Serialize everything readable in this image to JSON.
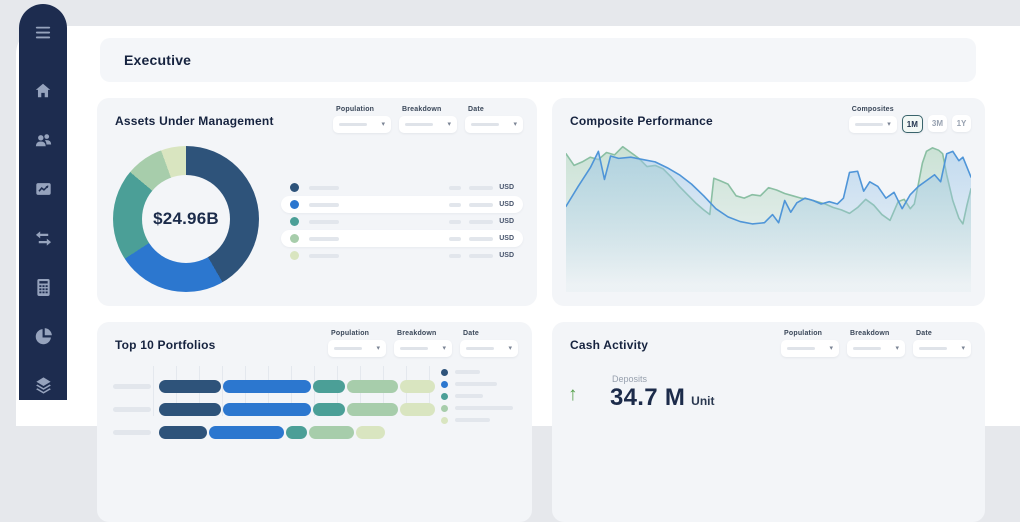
{
  "app": {
    "page_title": "Executive"
  },
  "sidebar": {
    "icons": [
      "menu-icon",
      "home-icon",
      "users-icon",
      "performance-chart-icon",
      "transfer-arrows-icon",
      "calculator-icon",
      "pie-chart-icon",
      "layers-icon"
    ]
  },
  "colors": {
    "sidebar_bg": "#1d2c4f",
    "sidebar_icon": "#96a3bd",
    "card_bg": "#f3f5f8",
    "title_text": "#16233f",
    "accent_navy": "#2e537a",
    "accent_blue": "#2c77cf",
    "accent_teal": "#4b9f97",
    "accent_sage": "#a7cdab",
    "accent_pale_green": "#d9e5c0",
    "kpi_up_green": "#55a04a"
  },
  "cards": {
    "aum": {
      "title": "Assets Under Management",
      "filters": [
        {
          "label": "Population"
        },
        {
          "label": "Breakdown"
        },
        {
          "label": "Date"
        }
      ],
      "chart_data": {
        "type": "donut",
        "center_label": "$24.96B",
        "segments": [
          {
            "color": "#2e537a",
            "angle_deg": 150
          },
          {
            "color": "#2c77cf",
            "angle_deg": 87
          },
          {
            "color": "#4b9f97",
            "angle_deg": 73
          },
          {
            "color": "#a7cdab",
            "angle_deg": 30
          },
          {
            "color": "#d9e5c0",
            "angle_deg": 20
          }
        ],
        "legend_rows": 5,
        "legend_value_suffix": "USD",
        "legend_labels_are_placeholders": true
      }
    },
    "composite": {
      "title": "Composite Performance",
      "filter_label": "Composites",
      "range_buttons": [
        "1M",
        "3M",
        "1Y"
      ],
      "selected_range": "1M",
      "chart_data": {
        "type": "area",
        "grid": false,
        "x_range": [
          0,
          100
        ],
        "y_range": [
          0,
          100
        ],
        "series": [
          {
            "name": "series-green",
            "line_color": "#8abfa3",
            "fill_color": "#a9d2b8",
            "points": [
              [
                0,
                90
              ],
              [
                2,
                80
              ],
              [
                4,
                83
              ],
              [
                6,
                87
              ],
              [
                8,
                85
              ],
              [
                10,
                91
              ],
              [
                12,
                89
              ],
              [
                14,
                96
              ],
              [
                16,
                91
              ],
              [
                18,
                86
              ],
              [
                20,
                79
              ],
              [
                22,
                80
              ],
              [
                24,
                77
              ],
              [
                26,
                70
              ],
              [
                28,
                62
              ],
              [
                30,
                55
              ],
              [
                32,
                48
              ],
              [
                34,
                42
              ],
              [
                35.5,
                38
              ],
              [
                36.5,
                69
              ],
              [
                38,
                67
              ],
              [
                40,
                64
              ],
              [
                42,
                54
              ],
              [
                44,
                52
              ],
              [
                46,
                55
              ],
              [
                48,
                54
              ],
              [
                50,
                61
              ],
              [
                52,
                59
              ],
              [
                54,
                56
              ],
              [
                56,
                54
              ],
              [
                58,
                52
              ],
              [
                60,
                51
              ],
              [
                62,
                49
              ],
              [
                64,
                47
              ],
              [
                66,
                44
              ],
              [
                68,
                42
              ],
              [
                70,
                39
              ],
              [
                72,
                44
              ],
              [
                74,
                51
              ],
              [
                76,
                46
              ],
              [
                78,
                38
              ],
              [
                80,
                33
              ],
              [
                82,
                49
              ],
              [
                83.5,
                51
              ],
              [
                85,
                43
              ],
              [
                86,
                47
              ],
              [
                87,
                64
              ],
              [
                88,
                82
              ],
              [
                89,
                92
              ],
              [
                90.5,
                95
              ],
              [
                92,
                93
              ],
              [
                93,
                90
              ],
              [
                94,
                72
              ],
              [
                95.5,
                50
              ],
              [
                97,
                35
              ],
              [
                98,
                30
              ],
              [
                99,
                46
              ],
              [
                100,
                60
              ]
            ]
          },
          {
            "name": "series-blue",
            "line_color": "#4f95d8",
            "fill_color": "#9cc6e8",
            "points": [
              [
                0,
                45
              ],
              [
                3,
                62
              ],
              [
                6,
                78
              ],
              [
                8,
                92
              ],
              [
                9.5,
                68
              ],
              [
                11,
                88
              ],
              [
                13,
                86
              ],
              [
                16,
                87
              ],
              [
                19,
                85
              ],
              [
                22,
                83
              ],
              [
                25,
                78
              ],
              [
                28,
                72
              ],
              [
                31,
                64
              ],
              [
                34,
                54
              ],
              [
                37,
                43
              ],
              [
                40,
                36
              ],
              [
                43,
                32
              ],
              [
                46,
                30
              ],
              [
                49,
                31
              ],
              [
                51,
                38
              ],
              [
                52.5,
                31
              ],
              [
                54,
                50
              ],
              [
                55.5,
                40
              ],
              [
                57,
                48
              ],
              [
                59,
                52
              ],
              [
                61,
                50
              ],
              [
                63,
                47
              ],
              [
                65,
                49
              ],
              [
                67,
                47
              ],
              [
                68.5,
                52
              ],
              [
                70,
                74
              ],
              [
                72,
                75
              ],
              [
                73.5,
                58
              ],
              [
                75,
                66
              ],
              [
                77,
                62
              ],
              [
                79,
                52
              ],
              [
                81,
                57
              ],
              [
                83,
                43
              ],
              [
                85,
                55
              ],
              [
                87,
                62
              ],
              [
                89,
                67
              ],
              [
                91,
                72
              ],
              [
                92.5,
                66
              ],
              [
                94,
                90
              ],
              [
                95.5,
                92
              ],
              [
                97,
                84
              ],
              [
                98,
                87
              ],
              [
                100,
                70
              ]
            ]
          }
        ]
      }
    },
    "portfolios": {
      "title": "Top 10 Portfolios",
      "filters": [
        {
          "label": "Population"
        },
        {
          "label": "Breakdown"
        },
        {
          "label": "Date"
        }
      ],
      "chart_data": {
        "type": "stacked-bar-horizontal",
        "segment_colors": [
          "#2e537a",
          "#2c77cf",
          "#4b9f97",
          "#a7cdab",
          "#d9e5c0"
        ],
        "rows": [
          {
            "segments": [
              62,
              88,
              32,
              51,
              35
            ]
          },
          {
            "segments": [
              62,
              88,
              32,
              51,
              35
            ]
          },
          {
            "segments": [
              48,
              75,
              21,
              45,
              29
            ]
          }
        ],
        "legend_placeholder_widths": [
          25,
          42,
          28,
          58,
          35
        ]
      }
    },
    "cash": {
      "title": "Cash Activity",
      "filters": [
        {
          "label": "Population"
        },
        {
          "label": "Breakdown"
        },
        {
          "label": "Date"
        }
      ],
      "kpi": {
        "direction": "up",
        "label": "Deposits",
        "value": "34.7 M",
        "unit": "Unit"
      }
    }
  }
}
